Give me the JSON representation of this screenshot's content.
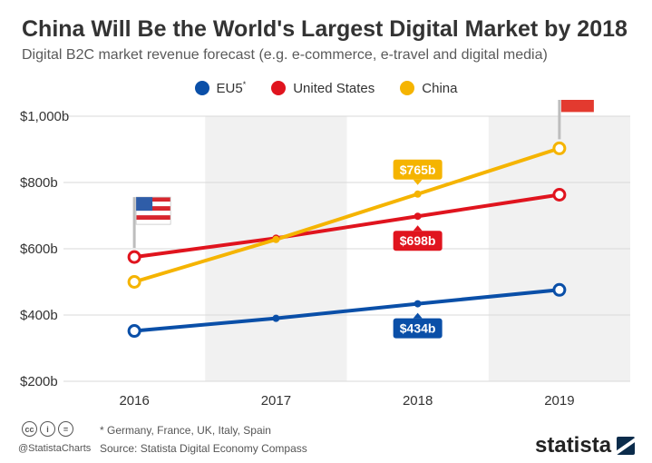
{
  "header": {
    "title": "China Will Be the World's Largest Digital Market by 2018",
    "subtitle": "Digital B2C market revenue forecast (e.g. e-commerce, e-travel and digital media)"
  },
  "legend": [
    {
      "name": "EU5",
      "marker": "*",
      "color": "#0a4fa8"
    },
    {
      "name": "United States",
      "marker": "",
      "color": "#e0141e"
    },
    {
      "name": "China",
      "marker": "",
      "color": "#f5b400"
    }
  ],
  "chart_data": {
    "type": "line",
    "x": [
      "2016",
      "2017",
      "2018",
      "2019"
    ],
    "yticks": [
      "$1,000b",
      "$800b",
      "$600b",
      "$400b",
      "$200b"
    ],
    "ylim": [
      200,
      1000
    ],
    "grid": true,
    "series": [
      {
        "name": "EU5",
        "color": "#0a4fa8",
        "values": [
          352,
          390,
          434,
          476
        ]
      },
      {
        "name": "United States",
        "color": "#e0141e",
        "values": [
          575,
          632,
          698,
          763
        ]
      },
      {
        "name": "China",
        "color": "#f5b400",
        "values": [
          500,
          628,
          765,
          903
        ]
      }
    ],
    "labels": [
      {
        "series": 2,
        "point": 2,
        "text": "$765b",
        "position": "above"
      },
      {
        "series": 1,
        "point": 2,
        "text": "$698b",
        "position": "below"
      },
      {
        "series": 0,
        "point": 2,
        "text": "$434b",
        "position": "below"
      }
    ],
    "shaded_columns": [
      "2017",
      "2019"
    ],
    "flags": [
      {
        "icon": "us-flag-icon",
        "series": 1,
        "point": 0
      },
      {
        "icon": "china-flag-icon",
        "series": 2,
        "point": 3
      }
    ]
  },
  "footer": {
    "cc_icons": [
      "cc",
      "i",
      "="
    ],
    "handle": "@StatistaCharts",
    "note": "* Germany, France, UK, Italy, Spain",
    "source": "Source: Statista Digital Economy Compass",
    "brand": "statista"
  }
}
